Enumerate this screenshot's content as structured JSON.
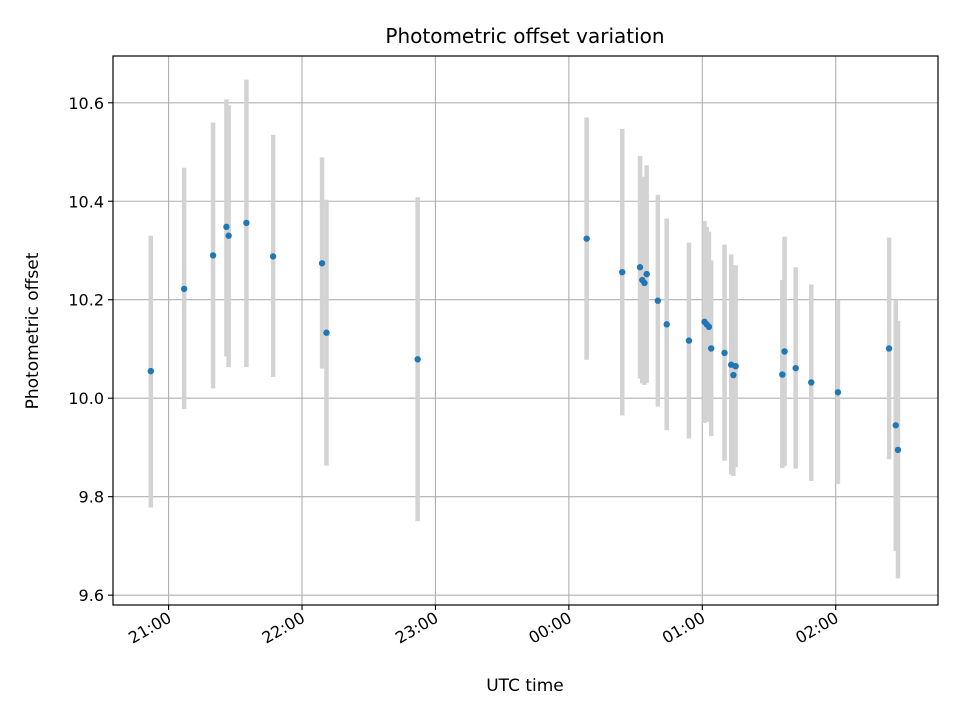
{
  "chart_data": {
    "type": "scatter",
    "title": "Photometric offset variation",
    "xlabel": "UTC time",
    "ylabel": "Photometric offset",
    "x_axis": {
      "type": "time",
      "min": "20:35",
      "max": "02:46",
      "ticks": [
        "21:00",
        "22:00",
        "23:00",
        "00:00",
        "01:00",
        "02:00"
      ]
    },
    "y_axis": {
      "min": 9.58,
      "max": 10.695,
      "ticks": [
        "9.6",
        "9.8",
        "10.0",
        "10.2",
        "10.4",
        "10.6"
      ]
    },
    "grid": true,
    "colors": {
      "point": "#1f77b4",
      "errorbar": "#d3d3d3",
      "grid": "#b0b0b0"
    },
    "points": [
      {
        "x": "20:52",
        "y": 10.055,
        "yerr_low": 9.778,
        "yerr_high": 10.33
      },
      {
        "x": "21:07",
        "y": 10.222,
        "yerr_low": 9.978,
        "yerr_high": 10.468
      },
      {
        "x": "21:20",
        "y": 10.29,
        "yerr_low": 10.02,
        "yerr_high": 10.56
      },
      {
        "x": "21:26",
        "y": 10.348,
        "yerr_low": 10.085,
        "yerr_high": 10.607
      },
      {
        "x": "21:27",
        "y": 10.33,
        "yerr_low": 10.063,
        "yerr_high": 10.595
      },
      {
        "x": "21:35",
        "y": 10.356,
        "yerr_low": 10.063,
        "yerr_high": 10.647
      },
      {
        "x": "21:47",
        "y": 10.288,
        "yerr_low": 10.043,
        "yerr_high": 10.535
      },
      {
        "x": "22:09",
        "y": 10.274,
        "yerr_low": 10.06,
        "yerr_high": 10.489
      },
      {
        "x": "22:11",
        "y": 10.133,
        "yerr_low": 9.863,
        "yerr_high": 10.403
      },
      {
        "x": "22:52",
        "y": 10.079,
        "yerr_low": 9.75,
        "yerr_high": 10.408
      },
      {
        "x": "00:08",
        "y": 10.324,
        "yerr_low": 10.078,
        "yerr_high": 10.57
      },
      {
        "x": "00:24",
        "y": 10.256,
        "yerr_low": 9.965,
        "yerr_high": 10.547
      },
      {
        "x": "00:32",
        "y": 10.266,
        "yerr_low": 10.04,
        "yerr_high": 10.492
      },
      {
        "x": "00:33",
        "y": 10.24,
        "yerr_low": 10.03,
        "yerr_high": 10.45
      },
      {
        "x": "00:34",
        "y": 10.234,
        "yerr_low": 10.027,
        "yerr_high": 10.44
      },
      {
        "x": "00:35",
        "y": 10.252,
        "yerr_low": 10.031,
        "yerr_high": 10.473
      },
      {
        "x": "00:40",
        "y": 10.198,
        "yerr_low": 9.983,
        "yerr_high": 10.413
      },
      {
        "x": "00:44",
        "y": 10.15,
        "yerr_low": 9.935,
        "yerr_high": 10.365
      },
      {
        "x": "00:54",
        "y": 10.117,
        "yerr_low": 9.918,
        "yerr_high": 10.316
      },
      {
        "x": "01:01",
        "y": 10.155,
        "yerr_low": 9.95,
        "yerr_high": 10.36
      },
      {
        "x": "01:02",
        "y": 10.15,
        "yerr_low": 9.952,
        "yerr_high": 10.348
      },
      {
        "x": "01:03",
        "y": 10.145,
        "yerr_low": 9.955,
        "yerr_high": 10.338
      },
      {
        "x": "01:04",
        "y": 10.101,
        "yerr_low": 9.923,
        "yerr_high": 10.28
      },
      {
        "x": "01:10",
        "y": 10.092,
        "yerr_low": 9.873,
        "yerr_high": 10.312
      },
      {
        "x": "01:13",
        "y": 10.068,
        "yerr_low": 9.845,
        "yerr_high": 10.292
      },
      {
        "x": "01:14",
        "y": 10.047,
        "yerr_low": 9.842,
        "yerr_high": 10.252
      },
      {
        "x": "01:15",
        "y": 10.065,
        "yerr_low": 9.86,
        "yerr_high": 10.27
      },
      {
        "x": "01:36",
        "y": 10.048,
        "yerr_low": 9.858,
        "yerr_high": 10.24
      },
      {
        "x": "01:37",
        "y": 10.095,
        "yerr_low": 9.862,
        "yerr_high": 10.328
      },
      {
        "x": "01:42",
        "y": 10.061,
        "yerr_low": 9.857,
        "yerr_high": 10.266
      },
      {
        "x": "01:49",
        "y": 10.032,
        "yerr_low": 9.832,
        "yerr_high": 10.231
      },
      {
        "x": "02:01",
        "y": 10.012,
        "yerr_low": 9.826,
        "yerr_high": 10.2
      },
      {
        "x": "02:24",
        "y": 10.101,
        "yerr_low": 9.876,
        "yerr_high": 10.326
      },
      {
        "x": "02:27",
        "y": 9.945,
        "yerr_low": 9.69,
        "yerr_high": 10.2
      },
      {
        "x": "02:28",
        "y": 9.895,
        "yerr_low": 9.634,
        "yerr_high": 10.157
      }
    ]
  }
}
